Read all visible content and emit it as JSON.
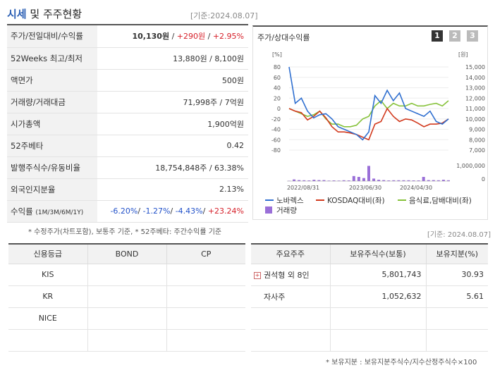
{
  "header": {
    "title_main": "시세",
    "title_rest": " 및 주주현황",
    "date": "[기준:2024.08.07]"
  },
  "info_rows": [
    {
      "label": "주가/전일대비/수익률",
      "price": "10,130원",
      "change": "+290원",
      "rate": "+2.95%"
    },
    {
      "label": "52Weeks 최고/최저",
      "value": "13,880원 / 8,100원"
    },
    {
      "label": "액면가",
      "value": "500원"
    },
    {
      "label": "거래량/거래대금",
      "value": "71,998주 / 7억원"
    },
    {
      "label": "시가총액",
      "value": "1,900억원"
    },
    {
      "label": "52주베타",
      "value": "0.42"
    },
    {
      "label": "발행주식수/유동비율",
      "value": "18,754,848주 / 63.38%"
    },
    {
      "label": "외국인지분율",
      "value": "2.13%"
    },
    {
      "label": "수익률",
      "label_sub": "(1M/3M/6M/1Y)",
      "r1": "-6.20%",
      "r2": "-1.27%",
      "r3": "-4.43%",
      "r4": "+23.24%"
    }
  ],
  "note1": "* 수정주가(차트포함), 보통주 기준, * 52주베타: 주간수익률 기준",
  "chart_panel": {
    "title": "주가/상대수익률",
    "tabs": [
      "1",
      "2",
      "3"
    ],
    "active_tab": "1",
    "colors": {
      "nobarex": "#2f6fd0",
      "kosdaq": "#d23a1e",
      "food": "#86c23a",
      "volume": "#9a6fd8",
      "tab_active": "#333333",
      "tab_inactive": "#bbbbbb"
    }
  },
  "chart_data": {
    "type": "line",
    "left_axis": {
      "unit": "[%]",
      "ticks": [
        "80",
        "60",
        "40",
        "20",
        "0",
        "-20",
        "-40",
        "-60",
        "-80"
      ],
      "range": [
        -80,
        80
      ]
    },
    "right_axis": {
      "unit": "[원]",
      "ticks": [
        "15,000",
        "14,000",
        "13,000",
        "12,000",
        "11,000",
        "10,000",
        "9,000",
        "8,000",
        "7,000"
      ],
      "range": [
        7000,
        15000
      ]
    },
    "volume_axis": {
      "ticks": [
        "1,000,000",
        "0"
      ],
      "range": [
        0,
        1000000
      ]
    },
    "x_labels": [
      "2022/08/31",
      "2023/06/30",
      "2024/04/30"
    ],
    "series": [
      {
        "name": "노바렉스",
        "values": [
          80,
          10,
          20,
          -5,
          -18,
          -12,
          -10,
          -20,
          -35,
          -40,
          -45,
          -50,
          -60,
          -45,
          25,
          10,
          35,
          15,
          30,
          0,
          -5,
          -10,
          -15,
          -5,
          -25,
          -30,
          -20
        ]
      },
      {
        "name": "KOSDAQ대비(좌)",
        "values": [
          0,
          -5,
          -8,
          -22,
          -15,
          -5,
          -18,
          -35,
          -45,
          -45,
          -47,
          -50,
          -55,
          -60,
          -30,
          -25,
          0,
          -15,
          -25,
          -20,
          -22,
          -28,
          -35,
          -30,
          -30,
          -28,
          -20
        ]
      },
      {
        "name": "음식료,담배대비(좌)",
        "values": [
          0,
          -5,
          -10,
          -15,
          -12,
          -5,
          -20,
          -30,
          -30,
          -35,
          -35,
          -32,
          -20,
          -15,
          5,
          15,
          0,
          10,
          5,
          5,
          10,
          5,
          5,
          8,
          10,
          5,
          15
        ]
      },
      {
        "name": "거래량",
        "values": [
          20000,
          100000,
          60000,
          50000,
          40000,
          80000,
          60000,
          60000,
          30000,
          40000,
          30000,
          50000,
          40000,
          300000,
          250000,
          180000,
          900000,
          150000,
          80000,
          60000,
          40000,
          50000,
          50000,
          50000,
          50000,
          40000,
          40000,
          250000,
          60000,
          60000,
          50000,
          80000,
          50000
        ]
      }
    ]
  },
  "date2": "[기준: 2024.08.07]",
  "credit_table": {
    "headers": [
      "신용등급",
      "BOND",
      "CP"
    ],
    "rows": [
      [
        "KIS",
        "",
        ""
      ],
      [
        "KR",
        "",
        ""
      ],
      [
        "NICE",
        "",
        ""
      ],
      [
        "",
        "",
        ""
      ]
    ]
  },
  "holder_table": {
    "headers": [
      "주요주주",
      "보유주식수(보통)",
      "보유지분(%)"
    ],
    "rows": [
      [
        "권석형 외 8인",
        "5,801,743",
        "30.93"
      ],
      [
        "자사주",
        "1,052,632",
        "5.61"
      ],
      [
        "",
        "",
        ""
      ],
      [
        "",
        "",
        ""
      ]
    ]
  },
  "note2": "* 보유지분 : 보유지분주식수/지수산정주식수×100"
}
